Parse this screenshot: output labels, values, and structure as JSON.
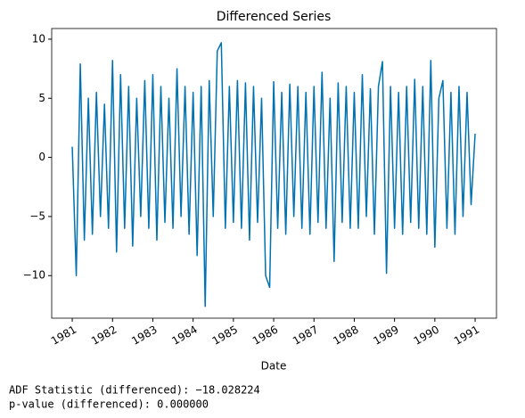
{
  "chart_data": {
    "type": "line",
    "title": "Differenced Series",
    "x_label": "Date",
    "color": "#0072b2",
    "x": [
      1981.0,
      1981.1,
      1981.2,
      1981.3,
      1981.4,
      1981.5,
      1981.6,
      1981.7,
      1981.8,
      1981.9,
      1982.0,
      1982.1,
      1982.2,
      1982.3,
      1982.4,
      1982.5,
      1982.6,
      1982.7,
      1982.8,
      1982.9,
      1983.0,
      1983.1,
      1983.2,
      1983.3,
      1983.4,
      1983.5,
      1983.6,
      1983.7,
      1983.8,
      1983.9,
      1984.0,
      1984.1,
      1984.2,
      1984.3,
      1984.4,
      1984.5,
      1984.6,
      1984.7,
      1984.8,
      1984.9,
      1985.0,
      1985.1,
      1985.2,
      1985.3,
      1985.4,
      1985.5,
      1985.6,
      1985.7,
      1985.8,
      1985.9,
      1986.0,
      1986.1,
      1986.2,
      1986.3,
      1986.4,
      1986.5,
      1986.6,
      1986.7,
      1986.8,
      1986.9,
      1987.0,
      1987.1,
      1987.2,
      1987.3,
      1987.4,
      1987.5,
      1987.6,
      1987.7,
      1987.8,
      1987.9,
      1988.0,
      1988.1,
      1988.2,
      1988.3,
      1988.4,
      1988.5,
      1988.6,
      1988.7,
      1988.8,
      1988.9,
      1989.0,
      1989.1,
      1989.2,
      1989.3,
      1989.4,
      1989.5,
      1989.6,
      1989.7,
      1989.8,
      1989.9,
      1990.0,
      1990.1,
      1990.2,
      1990.3,
      1990.4,
      1990.5,
      1990.6,
      1990.7,
      1990.8,
      1990.9,
      1991.0
    ],
    "values": [
      0.9,
      -10,
      7.9,
      -7,
      5,
      -6.5,
      5.5,
      -5,
      4.5,
      -6,
      8.2,
      -8,
      7,
      -6,
      6,
      -7.5,
      5,
      -5,
      6.5,
      -6,
      7,
      -7,
      6,
      -5.5,
      5,
      -6,
      7.5,
      -5,
      6,
      -6.5,
      5.5,
      -8.3,
      6,
      -12.6,
      6.5,
      -5,
      9,
      9.7,
      -6,
      6,
      -5.5,
      6.5,
      -6,
      6.3,
      -7,
      6,
      -5.5,
      5,
      -10,
      -11,
      6.4,
      -6,
      5.5,
      -6.5,
      6.2,
      -5,
      6,
      -6,
      5.5,
      -6.5,
      6,
      -5.5,
      7.2,
      -6,
      5,
      -8.8,
      6.3,
      -5.5,
      6,
      -6,
      5.5,
      -6,
      7,
      -5,
      5.8,
      -6.5,
      6,
      8.1,
      -9.8,
      6,
      -6,
      5.5,
      -6.5,
      6,
      -5.5,
      6.6,
      -6,
      6,
      -6.5,
      8.2,
      -7.6,
      5,
      6.5,
      -6,
      5.5,
      -6.5,
      6,
      -5,
      5.5,
      -4,
      2
    ],
    "xlim": [
      1980.49,
      1991.53
    ],
    "xticks": [
      1981,
      1982,
      1983,
      1984,
      1985,
      1986,
      1987,
      1988,
      1989,
      1990,
      1991
    ],
    "ylim": [
      -13.6,
      10.9
    ],
    "yticks": [
      {
        "value": -10,
        "label": "−10"
      },
      {
        "value": -5,
        "label": "−5"
      },
      0,
      5,
      10
    ],
    "annotations": [
      "ADF Statistic (differenced): −18.028224",
      "p-value (differenced): 0.000000"
    ]
  }
}
